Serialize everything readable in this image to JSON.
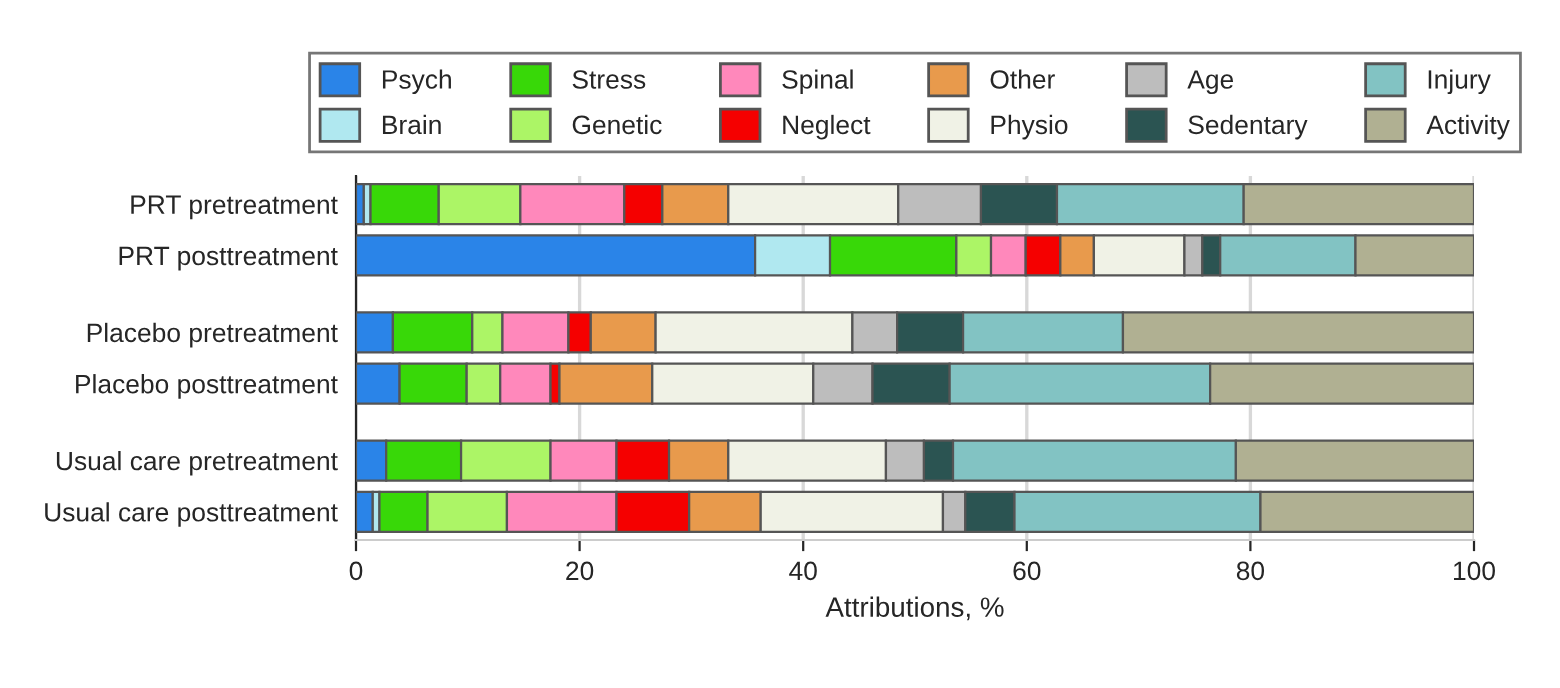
{
  "chart_data": {
    "type": "bar",
    "orientation": "horizontal",
    "stacked": true,
    "xlabel": "Attributions, %",
    "categories": [
      "PRT pretreatment",
      "PRT posttreatment",
      "Placebo pretreatment",
      "Placebo posttreatment",
      "Usual care pretreatment",
      "Usual care posttreatment"
    ],
    "xlim": [
      0,
      100
    ],
    "xticks": [
      0,
      20,
      40,
      60,
      80,
      100
    ],
    "grid": "x",
    "legend": "top",
    "series": [
      {
        "name": "Psych",
        "color": "#2a84e8",
        "values": [
          0.7,
          35.7,
          3.3,
          3.9,
          2.7,
          1.5
        ]
      },
      {
        "name": "Brain",
        "color": "#b0e8f0",
        "values": [
          0.6,
          6.7,
          null,
          null,
          null,
          0.6
        ]
      },
      {
        "name": "Stress",
        "color": "#38d808",
        "values": [
          6.1,
          11.3,
          7.1,
          6.0,
          6.7,
          4.3
        ]
      },
      {
        "name": "Genetic",
        "color": "#acf566",
        "values": [
          7.3,
          3.1,
          2.7,
          3.0,
          8.0,
          7.1
        ]
      },
      {
        "name": "Spinal",
        "color": "#ff88bb",
        "values": [
          9.3,
          3.1,
          5.9,
          4.5,
          5.9,
          9.8
        ]
      },
      {
        "name": "Neglect",
        "color": "#f50000",
        "values": [
          3.4,
          3.1,
          2.0,
          0.8,
          4.7,
          6.5
        ]
      },
      {
        "name": "Other",
        "color": "#e89a4c",
        "values": [
          5.9,
          3.0,
          5.8,
          8.3,
          5.3,
          6.4
        ]
      },
      {
        "name": "Physio",
        "color": "#f0f2e6",
        "values": [
          15.2,
          8.1,
          17.6,
          14.4,
          14.1,
          16.3
        ]
      },
      {
        "name": "Age",
        "color": "#bdbdbd",
        "values": [
          7.4,
          1.6,
          4.0,
          5.3,
          3.4,
          2.0
        ]
      },
      {
        "name": "Sedentary",
        "color": "#2b5452",
        "values": [
          6.8,
          1.6,
          5.9,
          6.9,
          2.6,
          4.4
        ]
      },
      {
        "name": "Injury",
        "color": "#82c3c3",
        "values": [
          16.7,
          12.1,
          14.3,
          23.3,
          25.3,
          22.0
        ]
      },
      {
        "name": "Activity",
        "color": "#b0b092",
        "values": [
          20.6,
          10.6,
          31.4,
          23.6,
          21.3,
          19.1
        ]
      }
    ]
  }
}
